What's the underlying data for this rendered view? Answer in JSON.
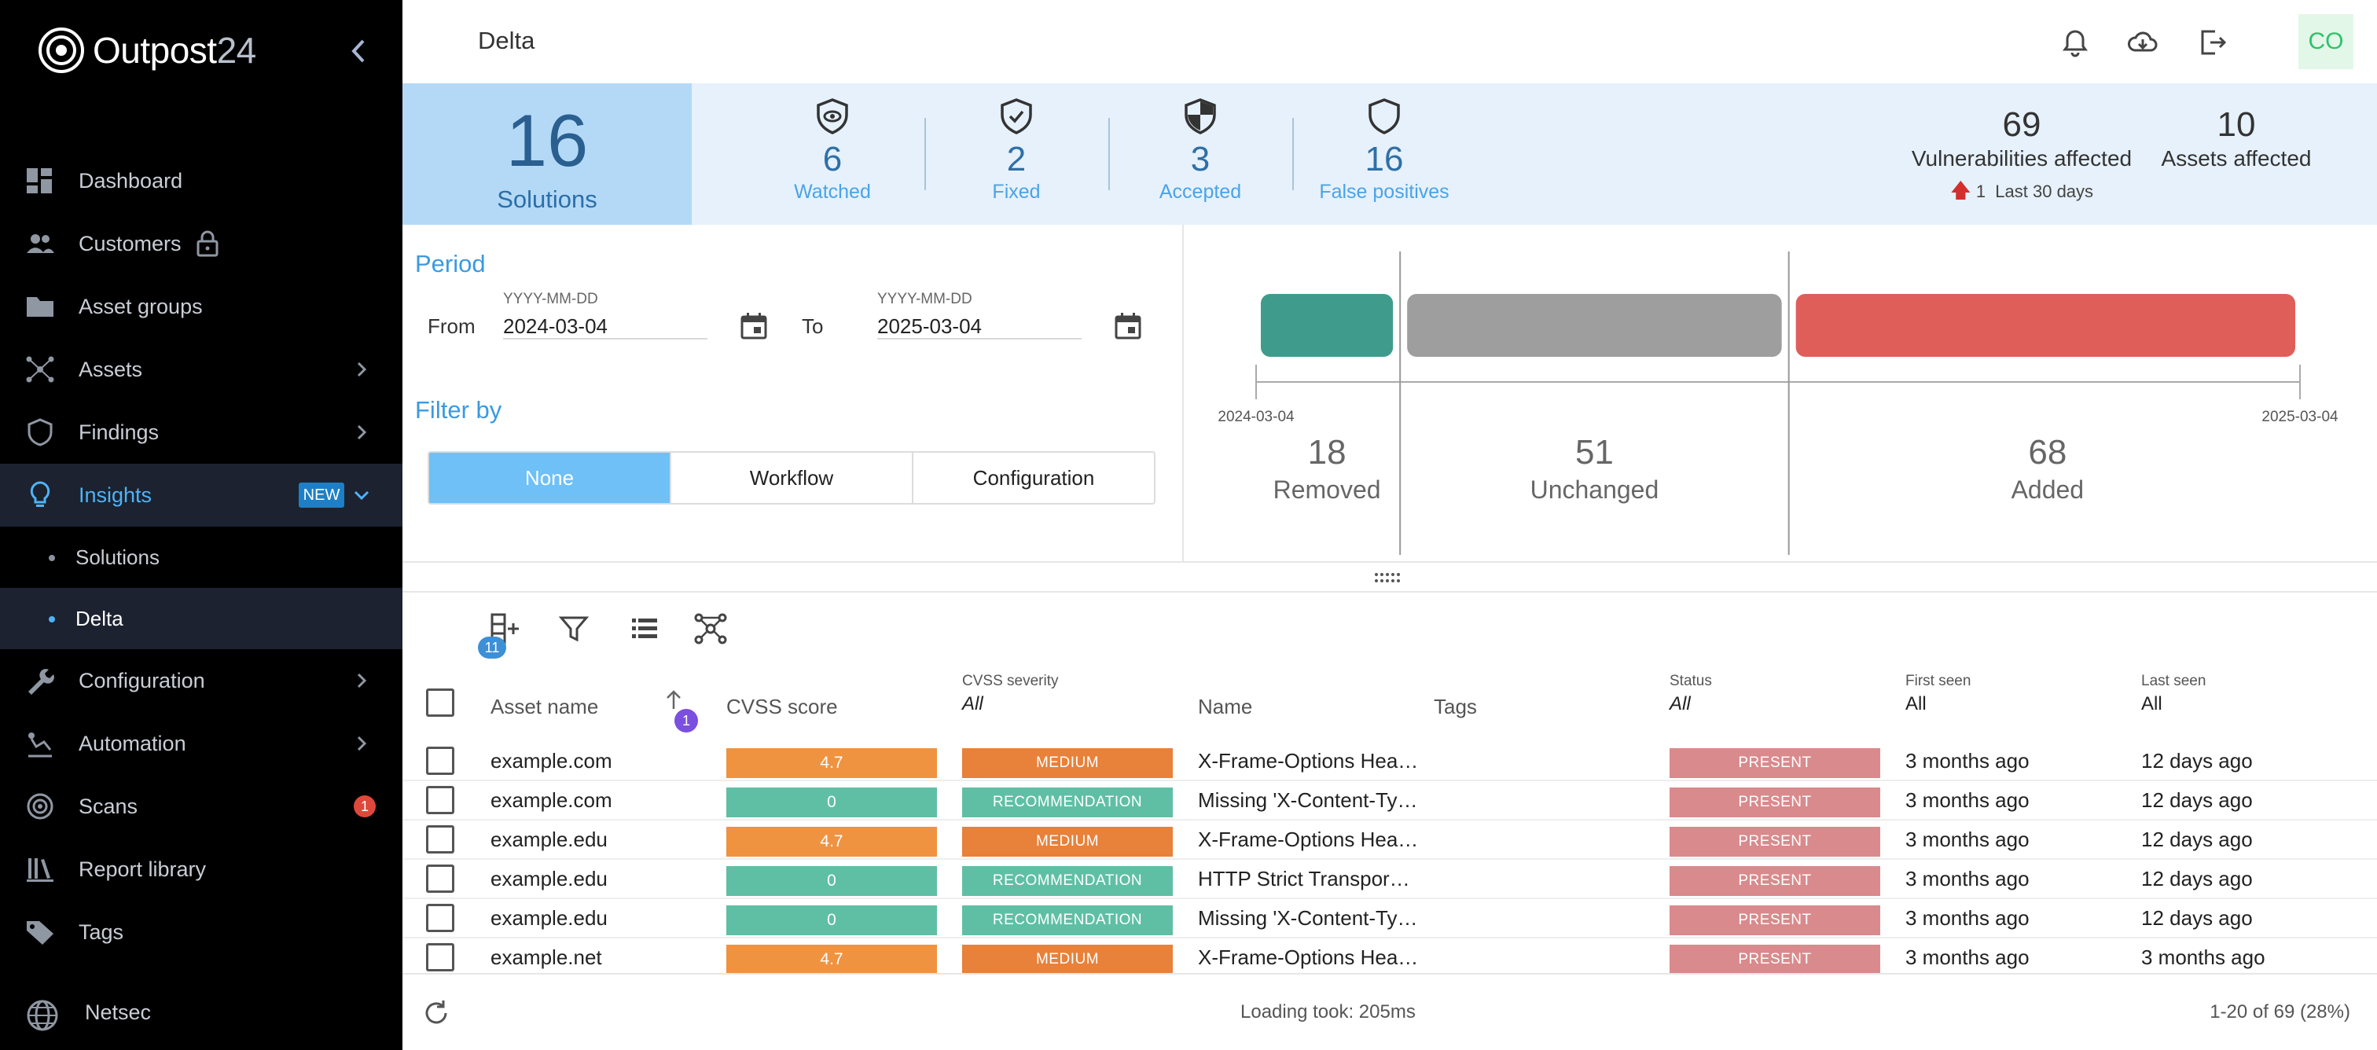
{
  "app": {
    "logo_main": "Outpost",
    "logo_num": "24",
    "page_title": "Delta",
    "avatar": "CO"
  },
  "sidebar": {
    "items": [
      {
        "label": "Dashboard",
        "icon": "dashboard-icon"
      },
      {
        "label": "Customers",
        "icon": "people-icon"
      },
      {
        "label": "Asset groups",
        "icon": "folder-icon"
      },
      {
        "label": "Assets",
        "icon": "network-icon"
      },
      {
        "label": "Findings",
        "icon": "shield-icon"
      },
      {
        "label": "Insights",
        "icon": "lightbulb-icon",
        "badge": "NEW"
      },
      {
        "label": "Configuration",
        "icon": "wrench-icon"
      },
      {
        "label": "Automation",
        "icon": "automation-icon"
      },
      {
        "label": "Scans",
        "icon": "radar-icon",
        "badge": "1"
      },
      {
        "label": "Report library",
        "icon": "library-icon"
      },
      {
        "label": "Tags",
        "icon": "tag-icon"
      }
    ],
    "subitems": [
      "Solutions",
      "Delta"
    ],
    "bottom": "Netsec"
  },
  "stats": {
    "main_value": "16",
    "main_label": "Solutions",
    "items": [
      {
        "value": "6",
        "label": "Watched",
        "icon": "eye-shield-icon"
      },
      {
        "value": "2",
        "label": "Fixed",
        "icon": "check-shield-icon"
      },
      {
        "value": "3",
        "label": "Accepted",
        "icon": "half-shield-icon"
      },
      {
        "value": "16",
        "label": "False positives",
        "icon": "outline-shield-icon"
      }
    ],
    "vulns_value": "69",
    "vulns_label": "Vulnerabilities affected",
    "trend_value": "1",
    "trend_label": "Last 30 days",
    "assets_value": "10",
    "assets_label": "Assets affected"
  },
  "period": {
    "title": "Period",
    "from_label": "From",
    "to_label": "To",
    "placeholder": "YYYY-MM-DD",
    "from_value": "2024-03-04",
    "to_value": "2025-03-04"
  },
  "filter": {
    "title": "Filter by",
    "options": [
      "None",
      "Workflow",
      "Configuration"
    ],
    "selected": "None"
  },
  "chart_data": {
    "type": "bar",
    "categories": [
      "Removed",
      "Unchanged",
      "Added"
    ],
    "values": [
      18,
      51,
      68
    ],
    "colors": [
      "#3f9c8c",
      "#9e9e9e",
      "#df5e5a"
    ],
    "x_start": "2024-03-04",
    "x_end": "2025-03-04"
  },
  "toolbar": {
    "column_count": "11"
  },
  "table": {
    "columns": {
      "asset_name": "Asset name",
      "cvss_score": "CVSS score",
      "cvss_severity": "CVSS severity",
      "cvss_severity_filter": "All",
      "name": "Name",
      "tags": "Tags",
      "status": "Status",
      "status_filter": "All",
      "first_seen": "First seen",
      "first_seen_filter": "All",
      "last_seen": "Last seen",
      "last_seen_filter": "All"
    },
    "sort_order": "1",
    "rows": [
      {
        "asset": "example.com",
        "score": "4.7",
        "score_color": "#ef9340",
        "severity": "MEDIUM",
        "sev_color": "#e8813a",
        "name": "X-Frame-Options Hea…",
        "status": "PRESENT",
        "first": "3 months ago",
        "last": "12 days ago"
      },
      {
        "asset": "example.com",
        "score": "0",
        "score_color": "#5fbfa4",
        "severity": "RECOMMENDATION",
        "sev_color": "#5fbfa4",
        "name": "Missing 'X-Content-Ty…",
        "status": "PRESENT",
        "first": "3 months ago",
        "last": "12 days ago"
      },
      {
        "asset": "example.edu",
        "score": "4.7",
        "score_color": "#ef9340",
        "severity": "MEDIUM",
        "sev_color": "#e8813a",
        "name": "X-Frame-Options Hea…",
        "status": "PRESENT",
        "first": "3 months ago",
        "last": "12 days ago"
      },
      {
        "asset": "example.edu",
        "score": "0",
        "score_color": "#5fbfa4",
        "severity": "RECOMMENDATION",
        "sev_color": "#5fbfa4",
        "name": "HTTP Strict Transpor…",
        "status": "PRESENT",
        "first": "3 months ago",
        "last": "12 days ago"
      },
      {
        "asset": "example.edu",
        "score": "0",
        "score_color": "#5fbfa4",
        "severity": "RECOMMENDATION",
        "sev_color": "#5fbfa4",
        "name": "Missing 'X-Content-Ty…",
        "status": "PRESENT",
        "first": "3 months ago",
        "last": "12 days ago"
      },
      {
        "asset": "example.net",
        "score": "4.7",
        "score_color": "#ef9340",
        "severity": "MEDIUM",
        "sev_color": "#e8813a",
        "name": "X-Frame-Options Hea…",
        "status": "PRESENT",
        "first": "3 months ago",
        "last": "3 months ago"
      }
    ]
  },
  "footer": {
    "loading": "Loading took: 205ms",
    "pager": "1-20 of 69 (28%)"
  }
}
